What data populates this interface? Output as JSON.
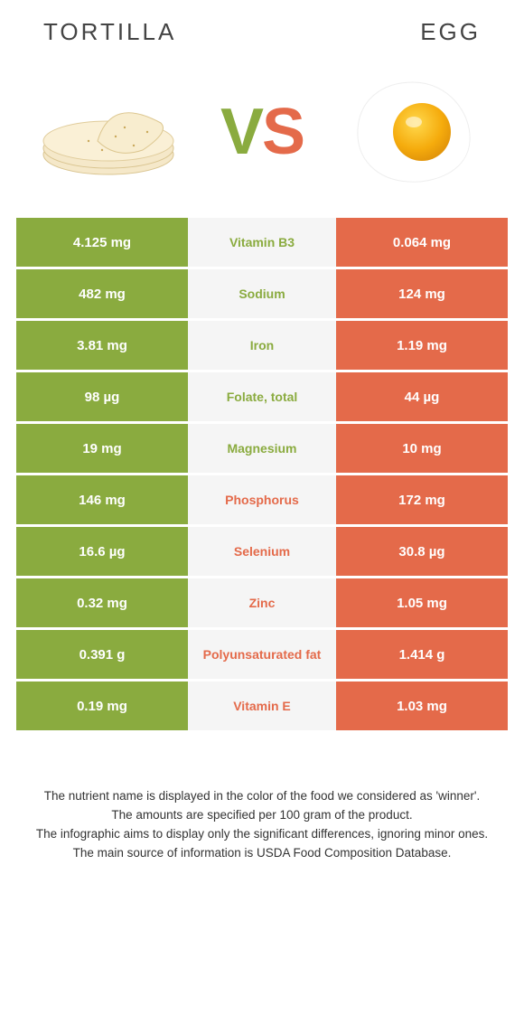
{
  "header": {
    "left_title": "TORTILLA",
    "right_title": "EGG",
    "vs_v": "V",
    "vs_s": "S"
  },
  "colors": {
    "left": "#8aab3f",
    "right": "#e46a4a",
    "mid_bg": "#f5f5f5",
    "mid_text_left_winner": "#8aab3f",
    "mid_text_right_winner": "#e46a4a",
    "page_bg": "#ffffff"
  },
  "table": {
    "type": "comparison-table",
    "columns": [
      "left_value",
      "nutrient",
      "right_value"
    ],
    "rows": [
      {
        "left": "4.125 mg",
        "nutrient": "Vitamin B3",
        "right": "0.064 mg",
        "winner": "left"
      },
      {
        "left": "482 mg",
        "nutrient": "Sodium",
        "right": "124 mg",
        "winner": "left"
      },
      {
        "left": "3.81 mg",
        "nutrient": "Iron",
        "right": "1.19 mg",
        "winner": "left"
      },
      {
        "left": "98 µg",
        "nutrient": "Folate, total",
        "right": "44 µg",
        "winner": "left"
      },
      {
        "left": "19 mg",
        "nutrient": "Magnesium",
        "right": "10 mg",
        "winner": "left"
      },
      {
        "left": "146 mg",
        "nutrient": "Phosphorus",
        "right": "172 mg",
        "winner": "right"
      },
      {
        "left": "16.6 µg",
        "nutrient": "Selenium",
        "right": "30.8 µg",
        "winner": "right"
      },
      {
        "left": "0.32 mg",
        "nutrient": "Zinc",
        "right": "1.05 mg",
        "winner": "right"
      },
      {
        "left": "0.391 g",
        "nutrient": "Polyunsaturated fat",
        "right": "1.414 g",
        "winner": "right"
      },
      {
        "left": "0.19 mg",
        "nutrient": "Vitamin E",
        "right": "1.03 mg",
        "winner": "right"
      }
    ]
  },
  "footer": {
    "line1": "The nutrient name is displayed in the color of the food we considered as 'winner'.",
    "line2": "The amounts are specified per 100 gram of the product.",
    "line3": "The infographic aims to display only the significant differences, ignoring minor ones.",
    "line4": "The main source of information is USDA Food Composition Database."
  }
}
